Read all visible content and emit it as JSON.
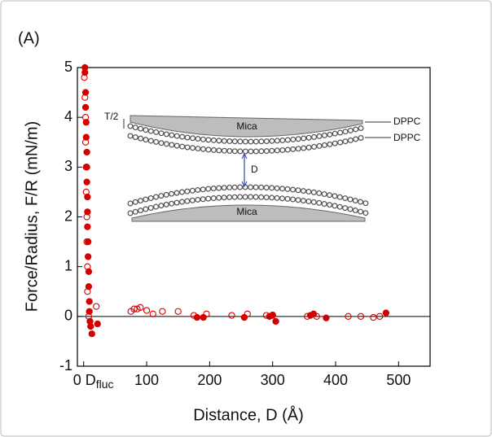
{
  "panel_label": "(A)",
  "chart_data": {
    "type": "scatter",
    "xlabel": "Distance, D (Å)",
    "ylabel": "Force/Radius, F/R (mN/m)",
    "xlim": [
      -10,
      550
    ],
    "ylim": [
      -1,
      5
    ],
    "xticks": [
      0,
      100,
      200,
      300,
      400,
      500
    ],
    "yticks": [
      -1,
      0,
      1,
      2,
      3,
      4,
      5
    ],
    "reference_line": 0,
    "annotation": {
      "main": "D",
      "sub": "fluc"
    },
    "series": [
      {
        "color": "#d40000",
        "marker": "filled",
        "x": [
          2,
          2,
          3,
          3,
          4,
          4,
          5,
          5,
          5,
          6,
          6,
          6,
          7,
          7,
          8,
          8,
          9,
          9,
          10,
          11,
          13,
          22,
          180,
          190,
          255,
          295,
          300,
          305,
          360,
          365,
          385,
          480
        ],
        "y": [
          5,
          4.9,
          4.5,
          4.2,
          3.9,
          3.6,
          3.3,
          3.0,
          2.7,
          2.4,
          2.1,
          1.8,
          1.5,
          1.2,
          0.9,
          0.6,
          0.3,
          0.1,
          -0.1,
          -0.2,
          -0.35,
          -0.15,
          -0.02,
          -0.02,
          -0.02,
          0.0,
          0.02,
          -0.1,
          0.02,
          0.05,
          -0.03,
          0.07
        ]
      },
      {
        "color": "#d40000",
        "marker": "open",
        "x": [
          1,
          2,
          3,
          3,
          4,
          4,
          5,
          5,
          6,
          6,
          8,
          20,
          75,
          80,
          85,
          90,
          100,
          110,
          125,
          150,
          175,
          195,
          235,
          260,
          290,
          300,
          355,
          370,
          420,
          440,
          460,
          470
        ],
        "y": [
          4.8,
          4.4,
          4.0,
          3.5,
          3.0,
          2.5,
          2.0,
          1.5,
          1.0,
          0.5,
          0.0,
          0.2,
          0.1,
          0.15,
          0.15,
          0.18,
          0.12,
          0.05,
          0.1,
          0.1,
          0.02,
          0.05,
          0.02,
          0.05,
          0.02,
          0.03,
          0.0,
          0.0,
          0.0,
          0.0,
          -0.02,
          0.0
        ]
      }
    ]
  },
  "inset": {
    "top_layer": "Mica",
    "bottom_layer": "Mica",
    "lipid_upper": "DPPC",
    "lipid_lower": "DPPC",
    "thickness": "T/2",
    "gap": "D"
  }
}
